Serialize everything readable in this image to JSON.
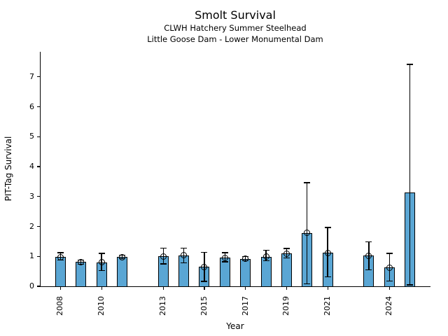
{
  "figure": {
    "title": "Smolt Survival",
    "subtitle1": "CLWH Hatchery Summer Steelhead",
    "subtitle2": "Little Goose Dam - Lower Monumental Dam"
  },
  "chart_data": {
    "type": "bar",
    "title": "Smolt Survival",
    "subtitles": [
      "CLWH Hatchery Summer Steelhead",
      "Little Goose Dam - Lower Monumental Dam"
    ],
    "xlabel": "Year",
    "ylabel": "PIT-Tag Survival",
    "xlim": [
      2007,
      2026
    ],
    "ylim": [
      0,
      7.84
    ],
    "yticks": [
      0,
      1,
      2,
      3,
      4,
      5,
      6,
      7
    ],
    "xticks": [
      2008,
      2010,
      2013,
      2015,
      2017,
      2019,
      2021,
      2024
    ],
    "grid": false,
    "legend": "none",
    "bar_color": "#5aa6d4",
    "bar_edge_color": "#000000",
    "error_color": "#000000",
    "marker_style": "open-circle",
    "points": [
      {
        "year": 2008,
        "value": 0.98,
        "lo": 0.88,
        "hi": 1.12,
        "marker": true
      },
      {
        "year": 2009,
        "value": 0.81,
        "lo": 0.74,
        "hi": 0.88,
        "marker": true
      },
      {
        "year": 2010,
        "value": 0.8,
        "lo": 0.52,
        "hi": 1.1,
        "marker": true
      },
      {
        "year": 2011,
        "value": 0.98,
        "lo": 0.93,
        "hi": 1.04,
        "marker": true
      },
      {
        "year": 2013,
        "value": 1.0,
        "lo": 0.75,
        "hi": 1.27,
        "marker": true
      },
      {
        "year": 2014,
        "value": 1.04,
        "lo": 0.79,
        "hi": 1.28,
        "marker": true
      },
      {
        "year": 2015,
        "value": 0.65,
        "lo": 0.16,
        "hi": 1.13,
        "marker": true
      },
      {
        "year": 2016,
        "value": 0.95,
        "lo": 0.82,
        "hi": 1.12,
        "marker": true
      },
      {
        "year": 2017,
        "value": 0.92,
        "lo": 0.85,
        "hi": 1.0,
        "marker": true
      },
      {
        "year": 2018,
        "value": 0.99,
        "lo": 0.85,
        "hi": 1.21,
        "marker": true
      },
      {
        "year": 2019,
        "value": 1.09,
        "lo": 0.95,
        "hi": 1.26,
        "marker": true
      },
      {
        "year": 2020,
        "value": 1.78,
        "lo": 0.08,
        "hi": 3.46,
        "marker": true
      },
      {
        "year": 2021,
        "value": 1.12,
        "lo": 0.32,
        "hi": 1.97,
        "marker": true
      },
      {
        "year": 2023,
        "value": 1.02,
        "lo": 0.55,
        "hi": 1.48,
        "marker": true
      },
      {
        "year": 2024,
        "value": 0.63,
        "lo": 0.17,
        "hi": 1.1,
        "marker": true
      },
      {
        "year": 2025,
        "value": 3.13,
        "lo": 0.05,
        "hi": 7.42,
        "marker": false
      }
    ]
  }
}
